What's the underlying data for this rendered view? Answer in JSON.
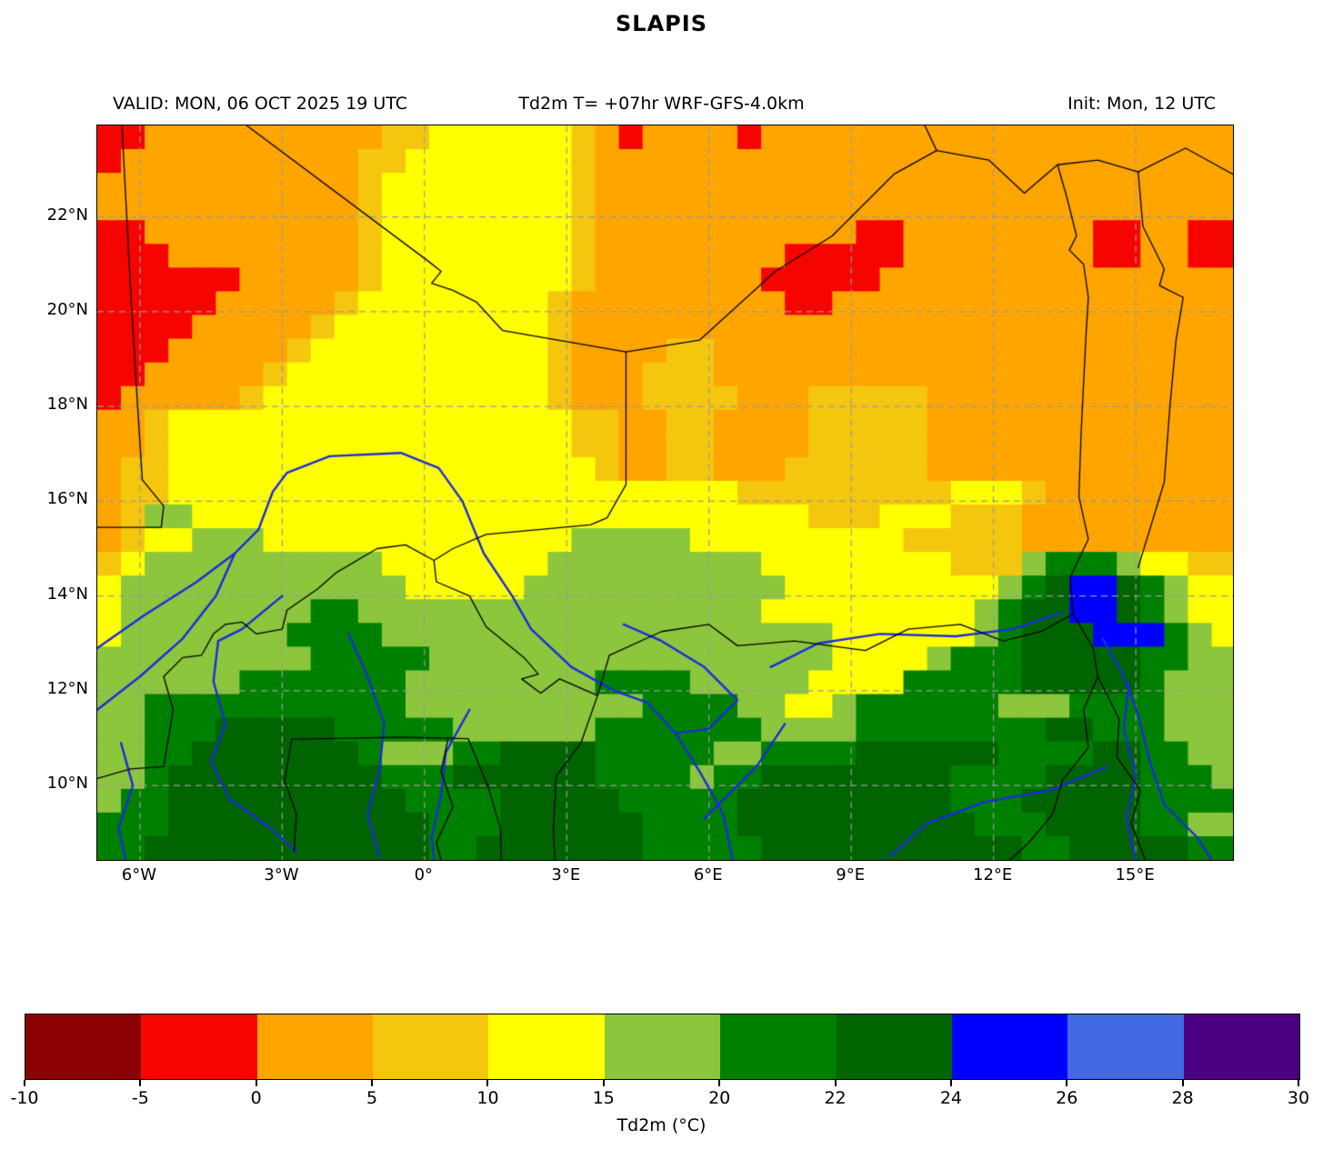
{
  "title": "SLAPIS",
  "header": {
    "valid": "VALID: MON, 06 OCT 2025 19 UTC",
    "model": "Td2m T= +07hr WRF-GFS-4.0km",
    "init": "Init: Mon, 12 UTC"
  },
  "chart_data": {
    "type": "heatmap",
    "field": "2-m dew point temperature forecast (filled contours over West Africa)",
    "extent": {
      "lon_min": -6.9,
      "lon_max": 17.05,
      "lat_min": 8.43,
      "lat_max": 23.93
    },
    "levels_c": [
      -10,
      -5,
      0,
      5,
      10,
      15,
      20,
      22,
      24,
      26,
      28,
      30
    ],
    "level_keys": [
      "a",
      "b",
      "c",
      "d",
      "e",
      "f",
      "g",
      "h",
      "i",
      "j",
      "k"
    ],
    "palette": {
      "a": "#8B0000",
      "b": "#F50400",
      "c": "#FFA500",
      "d": "#F5C60E",
      "e": "#FFFF00",
      "f": "#8CC63C",
      "g": "#008000",
      "h": "#006400",
      "i": "#0000FF",
      "j": "#4169E1",
      "k": "#4B0082"
    },
    "grid": {
      "lon0": -6.9,
      "lat0": 23.93,
      "dlon": 0.5,
      "dlat": 0.5,
      "rows": [
        "bbccccccccccddeeeeeedcbccccbcccccccccccccccccccc",
        "bccccccccccddeeeeeeedccccccccccccccccccccccccccc",
        "cccccccccccdeeeeeeeedccccccccccccccccccccccccccc",
        "cccccccccccdeeeeeeeedccccccccccccccccccccccccccc",
        "bbcccccccccdeeeeeeeedcccccccccccbbccccccccbbccbb",
        "bbbccccccccdeeeeeeeedccccccccbbbbbccccccccbbccbb",
        "bbbbbbcccccdeeeeeeeedcccccccbbbbbccccccccccccccc",
        "bbbbbcccccdeeeeeeeedcccccccccbbccccccccccccccccc",
        "bbbbcccccdeeeeeeeeedcccccccccccccccccccccccccccc",
        "bbbcccccdeeeeeeeeeedccccddcccccccccccccccccccccc",
        "bbcccccdeeeeeeeeeeedcccdddcccccccccccccccccccccc",
        "bcccccdeeeeeeeeeeeedcccddddcccdddddccccccccccccc",
        "ccdeeeeeeeeeeeeeeeeeddccddccccdddddccccccccccccc",
        "ccdeeeeeeeeeeeeeeeeeddccddccccdddddccccccccccccc",
        "cddeeeeeeeeeeeeeeeeeedccddcccddddddccccccccccccc",
        "cddeeeeeeeeeeeeeeeeeeeeeeeedddddddddeeedccccccccc",
        "cdffeeeeeeeeeeeeeeeeeeeeeeeeeedddeeedddccccccccc",
        "cdeefffeeeeeeeeeeeeefffffeeeeeeeeedddddccccccccc",
        "deffffffffffeeeeeeefffffffffeeeeeeeedddfgggfeedd",
        "effffffffffffeeeeefffffffffffeeeeeeeeefghiihgfee",
        "effffffffggfffffffffffffffffeeeeeeeeefghhiihgfee",
        "efffffffggggfffffffffffffffffffeeeeeefghhhiiigfe",
        "fffffffffgggggfffffffffffffffffeeeefggghhhhhggff",
        "ffffffgggggggffffffffggggfffffeeeeggggghhhhhgfff",
        "ffgggggggggggffffffffffggggffeefggggggfffggggfff",
        "ffggghhhhhgggggffffffgggggggffffgggggggghhgggfff",
        "ffgghhhhhhhgfffgghhhhgggggffgggghhhhhhgggghhggff",
        "ffghhhhhhhhhggghhhhhhggggfgghhhhhhhhgggghhhhgggf",
        "fgghhhhhhhhhhgggghhhhhggggghhhhhhhhhggghhhhhgggg",
        "ggghhhhhhhhhhhggghhhhhhgggghhhhhhhhhhggghhhhggff",
        "gghhhhhhhhhhhhgghhhhhhhggggghhhhhhhhhhhgghhhhhgg"
      ]
    },
    "grid_lons": [
      -6,
      -3,
      0,
      3,
      6,
      9,
      12,
      15
    ],
    "grid_lats": [
      10,
      12,
      14,
      16,
      18,
      20,
      22
    ],
    "x_ticks": [
      {
        "label": "6°W",
        "lon": -6
      },
      {
        "label": "3°W",
        "lon": -3
      },
      {
        "label": "0°",
        "lon": 0
      },
      {
        "label": "3°E",
        "lon": 3
      },
      {
        "label": "6°E",
        "lon": 6
      },
      {
        "label": "9°E",
        "lon": 9
      },
      {
        "label": "12°E",
        "lon": 12
      },
      {
        "label": "15°E",
        "lon": 15
      }
    ],
    "y_ticks": [
      {
        "label": "22°N",
        "lat": 22
      },
      {
        "label": "20°N",
        "lat": 20
      },
      {
        "label": "18°N",
        "lat": 18
      },
      {
        "label": "16°N",
        "lat": 16
      },
      {
        "label": "14°N",
        "lat": 14
      },
      {
        "label": "12°N",
        "lat": 12
      },
      {
        "label": "10°N",
        "lat": 10
      }
    ],
    "colorbar": {
      "label": "Td2m (°C)",
      "tick_labels": [
        "-10",
        "-5",
        "0",
        "5",
        "10",
        "15",
        "20",
        "22",
        "24",
        "26",
        "28",
        "30"
      ],
      "segment_keys": [
        "a",
        "b",
        "c",
        "d",
        "e",
        "f",
        "g",
        "h",
        "i",
        "j",
        "k"
      ]
    },
    "overlays": {
      "border_color": "#000000",
      "river_color": "#1B2BE0",
      "gridline_color": "#9a9a9a",
      "borders": [
        [
          [
            -6.38,
            23.93
          ],
          [
            -6.2,
            20.5
          ],
          [
            -6.05,
            18.0
          ],
          [
            -5.95,
            16.45
          ],
          [
            -5.5,
            15.9
          ],
          [
            -5.55,
            15.45
          ],
          [
            -6.9,
            15.45
          ]
        ],
        [
          [
            -3.75,
            23.93
          ],
          [
            0.1,
            21.05
          ],
          [
            0.35,
            20.85
          ],
          [
            0.15,
            20.6
          ],
          [
            0.6,
            20.45
          ],
          [
            1.1,
            20.2
          ],
          [
            1.65,
            19.6
          ],
          [
            4.25,
            19.15
          ]
        ],
        [
          [
            4.25,
            19.15
          ],
          [
            4.25,
            16.35
          ],
          [
            3.85,
            15.65
          ],
          [
            3.5,
            15.5
          ],
          [
            1.3,
            15.3
          ],
          [
            0.6,
            15.0
          ],
          [
            0.2,
            14.75
          ],
          [
            0.25,
            14.3
          ],
          [
            0.95,
            14.0
          ],
          [
            1.3,
            13.35
          ],
          [
            2.1,
            12.7
          ],
          [
            2.4,
            12.35
          ],
          [
            2.05,
            12.25
          ],
          [
            2.45,
            11.95
          ],
          [
            2.85,
            12.25
          ],
          [
            3.65,
            11.9
          ]
        ],
        [
          [
            4.25,
            19.15
          ],
          [
            5.8,
            19.4
          ],
          [
            7.4,
            20.85
          ],
          [
            8.6,
            21.6
          ],
          [
            9.9,
            22.9
          ],
          [
            10.8,
            23.4
          ],
          [
            10.55,
            23.93
          ]
        ],
        [
          [
            10.8,
            23.4
          ],
          [
            11.9,
            23.2
          ],
          [
            12.65,
            22.5
          ],
          [
            13.35,
            23.1
          ],
          [
            14.2,
            23.2
          ],
          [
            15.05,
            22.95
          ],
          [
            16.05,
            23.45
          ],
          [
            17.05,
            22.9
          ]
        ],
        [
          [
            13.35,
            23.1
          ],
          [
            13.55,
            22.4
          ],
          [
            13.75,
            21.6
          ],
          [
            13.6,
            21.3
          ],
          [
            13.9,
            21.0
          ],
          [
            14.0,
            20.3
          ],
          [
            13.95,
            19.5
          ],
          [
            13.85,
            17.5
          ],
          [
            13.8,
            16.1
          ],
          [
            14.0,
            15.2
          ],
          [
            13.62,
            14.4
          ],
          [
            13.68,
            13.62
          ]
        ],
        [
          [
            15.05,
            22.95
          ],
          [
            15.15,
            21.8
          ],
          [
            15.6,
            20.9
          ],
          [
            15.5,
            20.55
          ],
          [
            16.0,
            20.3
          ],
          [
            15.85,
            19.4
          ],
          [
            15.72,
            18.0
          ],
          [
            15.6,
            16.4
          ],
          [
            15.05,
            14.6
          ]
        ],
        [
          [
            3.65,
            11.9
          ],
          [
            3.9,
            12.75
          ],
          [
            5.0,
            13.25
          ],
          [
            6.0,
            13.4
          ],
          [
            6.6,
            12.95
          ],
          [
            7.8,
            13.05
          ],
          [
            9.3,
            12.85
          ],
          [
            10.2,
            13.3
          ],
          [
            11.3,
            13.4
          ],
          [
            12.2,
            13.05
          ],
          [
            13.0,
            13.25
          ],
          [
            13.68,
            13.62
          ]
        ],
        [
          [
            13.68,
            13.62
          ],
          [
            14.1,
            12.9
          ],
          [
            14.2,
            12.3
          ],
          [
            14.65,
            11.4
          ],
          [
            14.6,
            10.6
          ],
          [
            15.1,
            9.9
          ],
          [
            14.9,
            9.2
          ],
          [
            15.2,
            8.43
          ]
        ],
        [
          [
            14.2,
            12.3
          ],
          [
            13.9,
            11.6
          ],
          [
            14.0,
            10.8
          ],
          [
            13.45,
            10.1
          ],
          [
            13.25,
            9.4
          ],
          [
            12.75,
            8.8
          ],
          [
            12.35,
            8.43
          ]
        ],
        [
          [
            -5.5,
            10.4
          ],
          [
            -5.4,
            11.0
          ],
          [
            -5.3,
            11.6
          ],
          [
            -5.5,
            12.3
          ],
          [
            -5.1,
            12.7
          ],
          [
            -4.7,
            12.75
          ],
          [
            -4.45,
            13.2
          ],
          [
            -4.2,
            13.4
          ],
          [
            -3.85,
            13.45
          ],
          [
            -3.55,
            13.2
          ],
          [
            -3.0,
            13.3
          ],
          [
            -2.9,
            13.7
          ],
          [
            -2.25,
            14.15
          ],
          [
            -1.85,
            14.5
          ],
          [
            -1.0,
            15.0
          ],
          [
            -0.4,
            15.08
          ],
          [
            0.2,
            14.75
          ]
        ],
        [
          [
            -2.8,
            10.98
          ],
          [
            -1.6,
            11.0
          ],
          [
            -0.5,
            11.02
          ],
          [
            0.5,
            11.0
          ],
          [
            0.92,
            10.99
          ]
        ],
        [
          [
            0.5,
            11.0
          ],
          [
            0.35,
            10.3
          ],
          [
            0.6,
            9.55
          ],
          [
            0.25,
            8.8
          ],
          [
            0.35,
            8.43
          ]
        ],
        [
          [
            0.92,
            10.99
          ],
          [
            1.35,
            9.95
          ],
          [
            1.6,
            9.1
          ],
          [
            1.62,
            8.43
          ]
        ],
        [
          [
            2.75,
            8.43
          ],
          [
            2.72,
            9.1
          ],
          [
            2.78,
            10.2
          ],
          [
            3.3,
            10.9
          ],
          [
            3.65,
            11.9
          ]
        ],
        [
          [
            -6.9,
            10.15
          ],
          [
            -6.2,
            10.35
          ],
          [
            -5.5,
            10.4
          ]
        ],
        [
          [
            -2.8,
            10.98
          ],
          [
            -2.95,
            10.1
          ],
          [
            -2.7,
            9.4
          ],
          [
            -2.75,
            8.6
          ]
        ]
      ],
      "rivers": [
        [
          [
            -6.9,
            12.9
          ],
          [
            -5.9,
            13.6
          ],
          [
            -4.8,
            14.3
          ],
          [
            -4.0,
            14.9
          ],
          [
            -3.5,
            15.4
          ],
          [
            -3.2,
            16.2
          ],
          [
            -2.9,
            16.6
          ],
          [
            -2.0,
            16.95
          ],
          [
            -0.5,
            17.02
          ],
          [
            0.3,
            16.7
          ],
          [
            0.8,
            16.0
          ],
          [
            1.25,
            14.9
          ],
          [
            1.85,
            14.0
          ],
          [
            2.25,
            13.3
          ],
          [
            3.1,
            12.5
          ],
          [
            4.0,
            12.0
          ],
          [
            4.7,
            11.75
          ],
          [
            5.3,
            11.1
          ],
          [
            5.8,
            10.3
          ],
          [
            6.3,
            9.4
          ],
          [
            6.5,
            8.43
          ]
        ],
        [
          [
            -6.9,
            11.6
          ],
          [
            -6.0,
            12.3
          ],
          [
            -5.1,
            13.1
          ],
          [
            -4.4,
            14.0
          ],
          [
            -4.0,
            14.9
          ]
        ],
        [
          [
            -3.0,
            14.0
          ],
          [
            -3.85,
            13.3
          ],
          [
            -4.35,
            13.05
          ],
          [
            -4.45,
            12.2
          ],
          [
            -4.2,
            11.3
          ],
          [
            -4.5,
            10.5
          ],
          [
            -4.1,
            9.7
          ],
          [
            -3.3,
            9.15
          ],
          [
            -2.7,
            8.6
          ]
        ],
        [
          [
            -1.6,
            13.2
          ],
          [
            -1.2,
            12.3
          ],
          [
            -0.85,
            11.3
          ],
          [
            -0.95,
            10.3
          ],
          [
            -1.2,
            9.4
          ],
          [
            -0.95,
            8.5
          ]
        ],
        [
          [
            0.95,
            11.6
          ],
          [
            0.45,
            10.7
          ],
          [
            0.35,
            9.8
          ],
          [
            0.15,
            8.9
          ],
          [
            0.2,
            8.43
          ]
        ],
        [
          [
            4.2,
            13.4
          ],
          [
            5.0,
            13.05
          ],
          [
            5.9,
            12.5
          ],
          [
            6.6,
            11.8
          ],
          [
            6.0,
            11.2
          ],
          [
            5.3,
            11.1
          ]
        ],
        [
          [
            7.3,
            12.5
          ],
          [
            8.3,
            13.0
          ],
          [
            9.6,
            13.2
          ],
          [
            11.2,
            13.15
          ],
          [
            12.4,
            13.3
          ],
          [
            13.45,
            13.65
          ]
        ],
        [
          [
            14.3,
            13.1
          ],
          [
            14.7,
            12.4
          ],
          [
            15.05,
            11.5
          ],
          [
            15.3,
            10.5
          ],
          [
            15.6,
            9.6
          ],
          [
            16.3,
            8.9
          ],
          [
            16.6,
            8.43
          ]
        ],
        [
          [
            14.85,
            12.15
          ],
          [
            14.75,
            11.2
          ],
          [
            15.0,
            10.2
          ],
          [
            14.8,
            9.3
          ],
          [
            15.0,
            8.43
          ]
        ],
        [
          [
            14.4,
            10.4
          ],
          [
            13.2,
            9.9
          ],
          [
            11.8,
            9.65
          ],
          [
            10.6,
            9.2
          ],
          [
            9.8,
            8.5
          ]
        ],
        [
          [
            -6.4,
            10.9
          ],
          [
            -6.15,
            10.0
          ],
          [
            -6.45,
            9.1
          ],
          [
            -6.3,
            8.43
          ]
        ],
        [
          [
            7.6,
            11.3
          ],
          [
            7.0,
            10.4
          ],
          [
            6.4,
            9.8
          ],
          [
            5.9,
            9.3
          ]
        ]
      ]
    }
  }
}
